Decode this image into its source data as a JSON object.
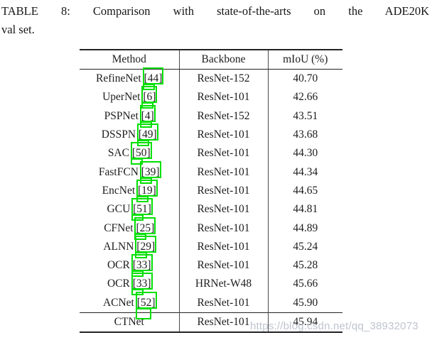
{
  "caption": {
    "line1": "TABLE 8: Comparison with state-of-the-arts on the ADE20K",
    "line2": "val set."
  },
  "table": {
    "headers": [
      "Method",
      "Backbone",
      "mIoU (%)"
    ],
    "rows": [
      {
        "method": "RefineNet",
        "cite": "[44]",
        "backbone": "ResNet-152",
        "miou": "40.70"
      },
      {
        "method": "UperNet",
        "cite": "[6]",
        "backbone": "ResNet-101",
        "miou": "42.66"
      },
      {
        "method": "PSPNet",
        "cite": "[4]",
        "backbone": "ResNet-152",
        "miou": "43.51"
      },
      {
        "method": "DSSPN",
        "cite": "[49]",
        "backbone": "ResNet-101",
        "miou": "43.68"
      },
      {
        "method": "SAC",
        "cite": "[50]",
        "backbone": "ResNet-101",
        "miou": "44.30"
      },
      {
        "method": "FastFCN",
        "cite": "[39]",
        "backbone": "ResNet-101",
        "miou": "44.34"
      },
      {
        "method": "EncNet",
        "cite": "[19]",
        "backbone": "ResNet-101",
        "miou": "44.65"
      },
      {
        "method": "GCU",
        "cite": "[51]",
        "backbone": "ResNet-101",
        "miou": "44.81"
      },
      {
        "method": "CFNet",
        "cite": "[25]",
        "backbone": "ResNet-101",
        "miou": "44.89"
      },
      {
        "method": "ALNN",
        "cite": "[29]",
        "backbone": "ResNet-101",
        "miou": "45.24"
      },
      {
        "method": "OCR",
        "cite": "[33]",
        "backbone": "ResNet-101",
        "miou": "45.28"
      },
      {
        "method": "OCR",
        "cite": "[33]",
        "backbone": "HRNet-W48",
        "miou": "45.66"
      },
      {
        "method": "ACNet",
        "cite": "[52]",
        "backbone": "ResNet-101",
        "miou": "45.90",
        "big_box": true
      },
      {
        "method": "CTNet",
        "cite": "",
        "backbone": "ResNet-101",
        "miou": "45.94",
        "bold_miou": true,
        "final": true
      }
    ]
  },
  "watermark": {
    "text": "https://blog.csdn.net/qq_38932073"
  },
  "colors": {
    "annotation_box": "#00e000",
    "watermark_text": "#b7bec9",
    "rule": "#232323"
  }
}
